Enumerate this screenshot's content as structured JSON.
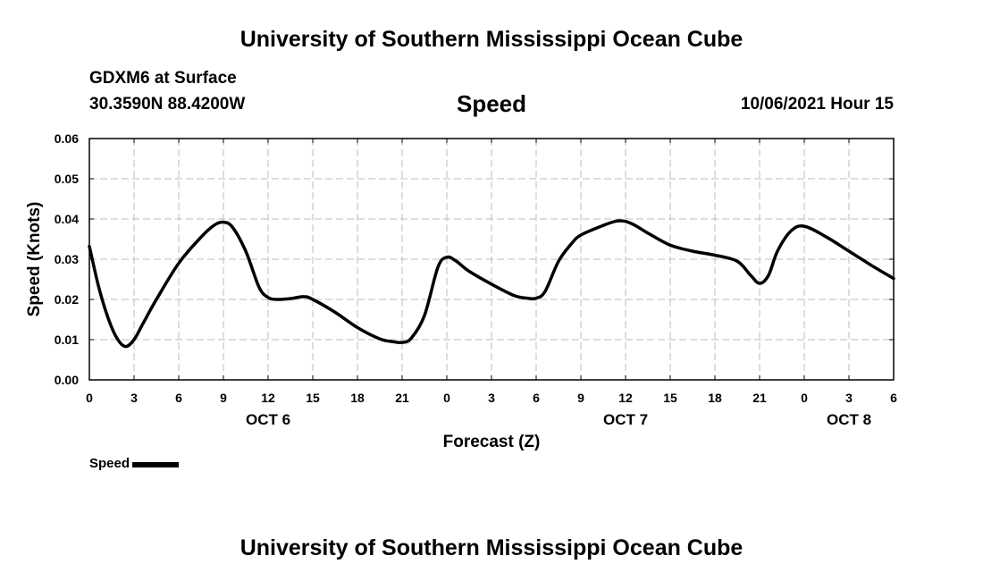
{
  "header": {
    "title": "University of Southern Mississippi Ocean Cube",
    "station": "GDXM6 at Surface",
    "coords": "30.3590N  88.4200W",
    "variable": "Speed",
    "timestamp": "10/06/2021 Hour 15"
  },
  "footer": {
    "title": "University of Southern Mississippi Ocean Cube"
  },
  "legend": {
    "label": "Speed"
  },
  "chart_data": {
    "type": "line",
    "title": "Speed",
    "xlabel": "Forecast (Z)",
    "ylabel": "Speed (Knots)",
    "xlim": [
      0,
      54
    ],
    "ylim": [
      0,
      0.06
    ],
    "grid": true,
    "line_color": "#000000",
    "x_ticks": [
      0,
      3,
      6,
      9,
      12,
      15,
      18,
      21,
      24,
      27,
      30,
      33,
      36,
      39,
      42,
      45,
      48,
      51,
      54
    ],
    "x_tick_labels": [
      "0",
      "3",
      "6",
      "9",
      "12",
      "15",
      "18",
      "21",
      "0",
      "3",
      "6",
      "9",
      "12",
      "15",
      "18",
      "21",
      "0",
      "3",
      "6"
    ],
    "y_ticks": [
      0,
      0.01,
      0.02,
      0.03,
      0.04,
      0.05,
      0.06
    ],
    "y_tick_labels": [
      "0.00",
      "0.01",
      "0.02",
      "0.03",
      "0.04",
      "0.05",
      "0.06"
    ],
    "date_labels": [
      {
        "x": 12,
        "label": "OCT 6"
      },
      {
        "x": 36,
        "label": "OCT 7"
      },
      {
        "x": 51,
        "label": "OCT 8"
      }
    ],
    "series": [
      {
        "name": "Speed",
        "x": [
          0,
          0.6,
          1.2,
          1.8,
          2.4,
          3,
          3.6,
          4.5,
          6,
          7.5,
          8.4,
          9,
          9.6,
          10.5,
          11.4,
          12,
          12.6,
          13.5,
          14.4,
          15,
          16.5,
          18,
          19.5,
          20.4,
          21,
          21.6,
          22.5,
          23.4,
          24,
          24.6,
          25.5,
          27,
          28.5,
          29.4,
          30,
          30.6,
          31.5,
          32.4,
          33,
          34.5,
          35.4,
          36,
          36.6,
          37.5,
          39,
          40.5,
          42,
          43.5,
          44.4,
          45,
          45.6,
          46.2,
          47.1,
          48,
          49.5,
          51,
          52.5,
          54
        ],
        "values": [
          0.0332,
          0.0235,
          0.016,
          0.0107,
          0.0083,
          0.01,
          0.014,
          0.02,
          0.029,
          0.0355,
          0.0385,
          0.0392,
          0.038,
          0.032,
          0.023,
          0.0205,
          0.02,
          0.0202,
          0.0207,
          0.02,
          0.0168,
          0.013,
          0.0102,
          0.0095,
          0.0093,
          0.0103,
          0.016,
          0.028,
          0.0305,
          0.0296,
          0.027,
          0.0238,
          0.021,
          0.0203,
          0.0203,
          0.022,
          0.0295,
          0.034,
          0.036,
          0.0384,
          0.0395,
          0.0394,
          0.0385,
          0.0365,
          0.0335,
          0.032,
          0.031,
          0.0295,
          0.026,
          0.024,
          0.026,
          0.032,
          0.037,
          0.0382,
          0.0355,
          0.032,
          0.0285,
          0.0252
        ]
      }
    ]
  }
}
